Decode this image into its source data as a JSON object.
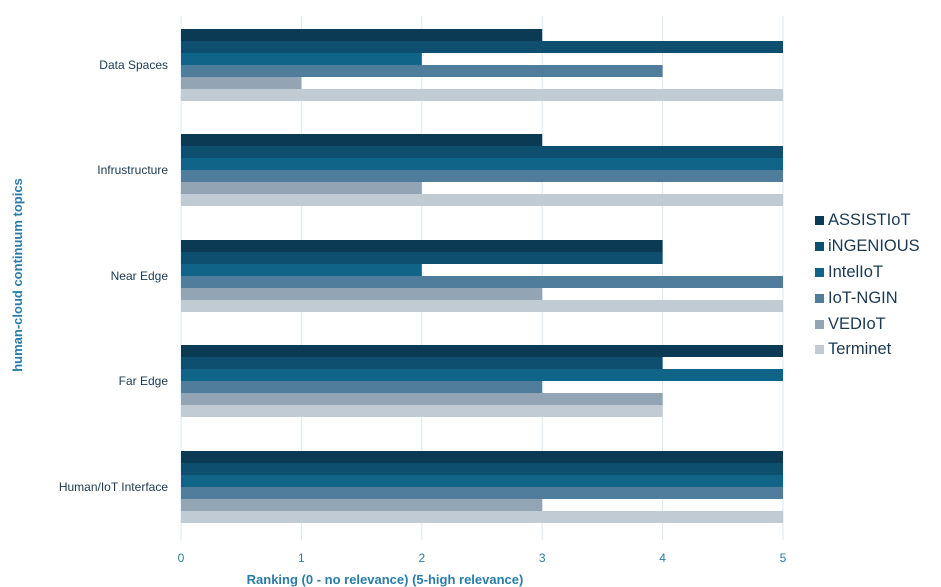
{
  "chart_data": {
    "type": "bar",
    "orientation": "horizontal",
    "xlabel": "Ranking (0 - no relevance) (5-high relevance)",
    "ylabel": "human-cloud continuum topics",
    "xlim": [
      0,
      5
    ],
    "xticks": [
      "0",
      "1",
      "2",
      "3",
      "4",
      "5"
    ],
    "grid": true,
    "legend_position": "right",
    "categories": [
      "Data Spaces",
      "Infrustructure",
      "Near Edge",
      "Far Edge",
      "Human/IoT Interface"
    ],
    "series": [
      {
        "name": "ASSISTIoT",
        "color": "#0b3a55",
        "values": [
          3,
          3,
          4,
          5,
          5
        ]
      },
      {
        "name": "iNGENIOUS",
        "color": "#0e4e6f",
        "values": [
          5,
          5,
          4,
          4,
          5
        ]
      },
      {
        "name": "IntelIoT",
        "color": "#0f6488",
        "values": [
          2,
          5,
          2,
          5,
          5
        ]
      },
      {
        "name": "IoT-NGIN",
        "color": "#4f7d9b",
        "values": [
          4,
          5,
          5,
          3,
          5
        ]
      },
      {
        "name": "VEDIoT",
        "color": "#93a5b4",
        "values": [
          1,
          2,
          3,
          4,
          3
        ]
      },
      {
        "name": "Terminet",
        "color": "#c1cbd3",
        "values": [
          5,
          5,
          5,
          4,
          5
        ]
      }
    ]
  }
}
